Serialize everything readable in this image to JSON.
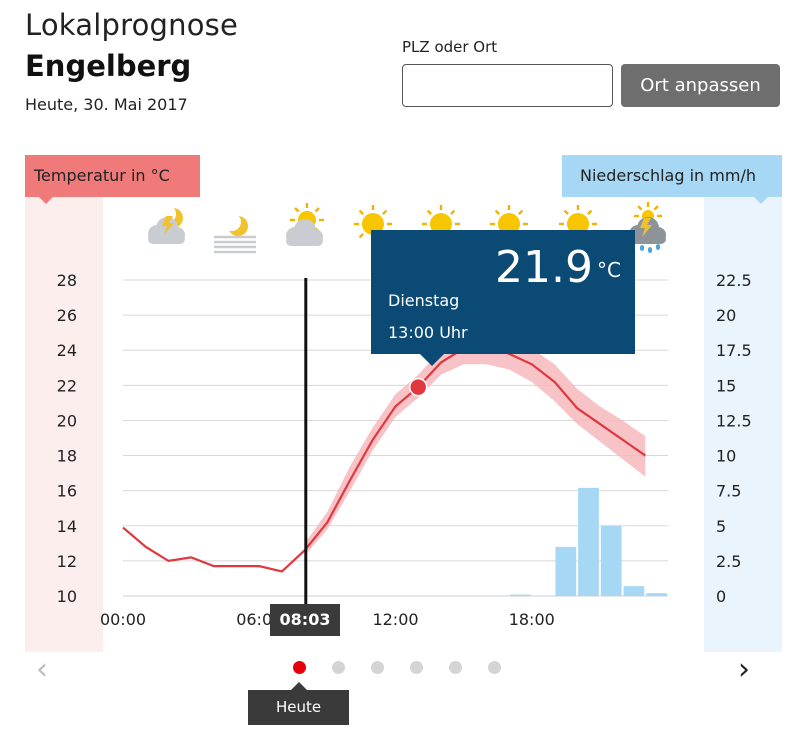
{
  "header": {
    "title": "Lokalprognose",
    "place": "Engelberg",
    "date": "Heute, 30. Mai 2017"
  },
  "location": {
    "label": "PLZ oder Ort",
    "value": "",
    "placeholder": "",
    "button": "Ort anpassen"
  },
  "legend": {
    "temperature": "Temperatur in °C",
    "precipitation": "Niederschlag in mm/h"
  },
  "weather_icons": [
    "thunder-cloud-moon",
    "fog-moon",
    "sun-cloud",
    "sun",
    "sun",
    "sun",
    "sun",
    "thunder-rain-cloud"
  ],
  "tooltip": {
    "value": "21.9",
    "unit": "°C",
    "day": "Dienstag",
    "time": "13:00 Uhr"
  },
  "current_time": "08:03",
  "pager": {
    "prev": "‹",
    "next": "›",
    "dots": 6,
    "active": 0,
    "today_label": "Heute"
  },
  "colors": {
    "temp_line": "#e0383e",
    "temp_band": "#f7b9bd",
    "precip_bar": "#a6d7f4",
    "tooltip_bg": "#0a4a74",
    "active_dot": "#e3000b"
  },
  "chart_data": {
    "type": "line",
    "x_ticks": [
      "00:00",
      "06:00",
      "12:00",
      "18:00"
    ],
    "x_range_hours": [
      0,
      24
    ],
    "y_left": {
      "label": "Temperatur in °C",
      "ticks": [
        10,
        12,
        14,
        16,
        18,
        20,
        22,
        24,
        26,
        28
      ],
      "range": [
        10,
        28
      ]
    },
    "y_right": {
      "label": "Niederschlag in mm/h",
      "ticks": [
        "0",
        "2.5",
        "5",
        "7.5",
        "10",
        "12.5",
        "15",
        "17.5",
        "20",
        "22.5"
      ],
      "range": [
        0,
        22.5
      ]
    },
    "temperature": {
      "hours": [
        0,
        1,
        2,
        3,
        4,
        5,
        6,
        7,
        8,
        9,
        10,
        11,
        12,
        13,
        14,
        15,
        16,
        17,
        18,
        19,
        20,
        21,
        22,
        23
      ],
      "values": [
        13.9,
        12.8,
        12.0,
        12.2,
        11.7,
        11.7,
        11.7,
        11.4,
        12.6,
        14.2,
        16.6,
        18.9,
        20.8,
        21.9,
        23.3,
        24.1,
        24.2,
        23.8,
        23.2,
        22.2,
        20.7,
        19.8,
        18.9,
        18.0
      ],
      "band_low": [
        null,
        null,
        null,
        null,
        null,
        null,
        null,
        null,
        12.3,
        13.8,
        16.0,
        18.3,
        20.2,
        21.3,
        22.6,
        23.2,
        23.2,
        22.9,
        22.2,
        21.1,
        19.8,
        18.8,
        17.8,
        16.8
      ],
      "band_high": [
        null,
        null,
        null,
        null,
        null,
        null,
        null,
        null,
        13.0,
        14.8,
        17.4,
        19.6,
        21.5,
        22.6,
        24.0,
        24.8,
        25.0,
        24.7,
        24.1,
        23.2,
        21.8,
        20.8,
        20.0,
        19.1
      ]
    },
    "precipitation": {
      "hours": [
        17,
        19,
        20,
        21,
        22,
        23
      ],
      "values": [
        0.1,
        3.5,
        7.7,
        5.0,
        0.7,
        0.2
      ]
    },
    "highlight": {
      "hour": 13,
      "value": 21.9
    },
    "current_hour": 8.05
  }
}
